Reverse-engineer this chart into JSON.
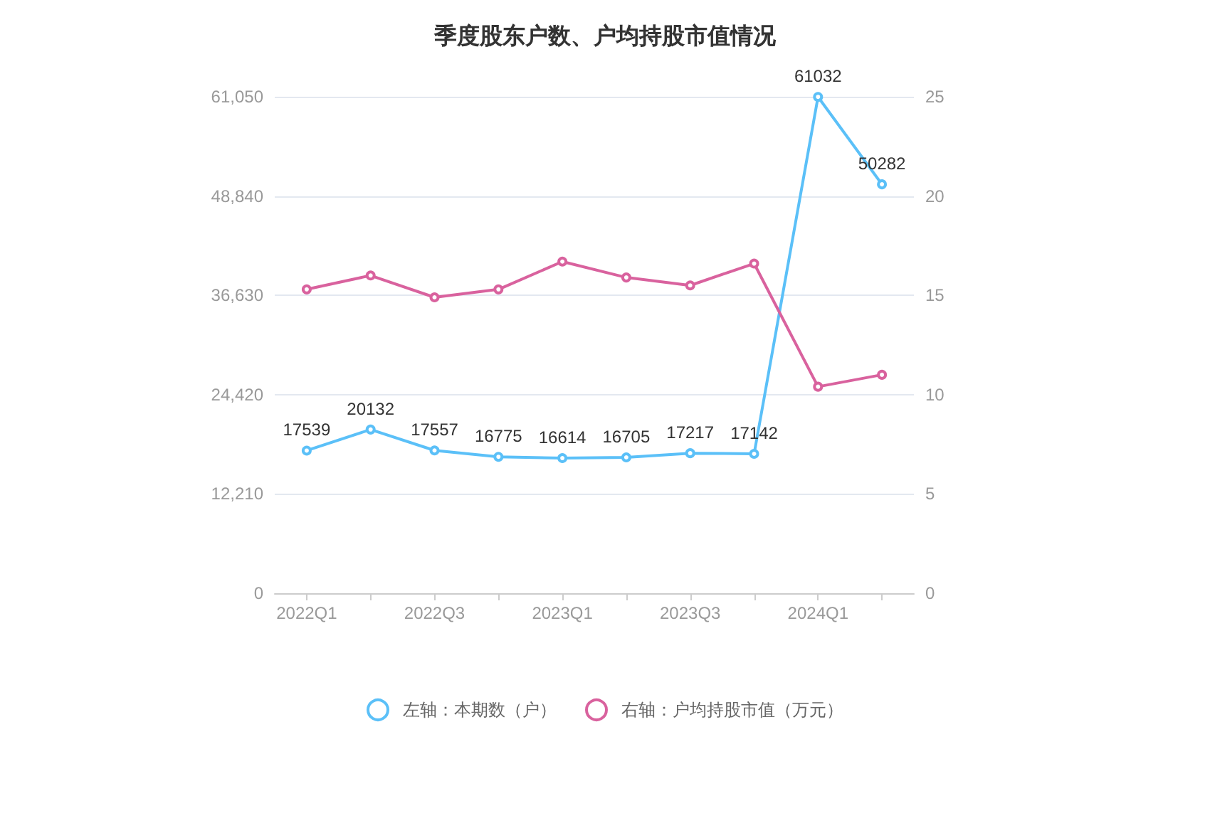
{
  "chart_data": {
    "type": "line",
    "title": "季度股东户数、户均持股市值情况",
    "categories": [
      "2022Q1",
      null,
      "2022Q3",
      null,
      "2023Q1",
      null,
      "2023Q3",
      null,
      "2024Q1",
      null
    ],
    "series": [
      {
        "name": "左轴：本期数（户）",
        "color": "#5bc0f8",
        "values": [
          17539,
          20132,
          17557,
          16775,
          16614,
          16705,
          17217,
          17142,
          61032,
          50282
        ],
        "value_labels": [
          "17539",
          "20132",
          "17557",
          "16775",
          "16614",
          "16705",
          "17217",
          "17142",
          "61032",
          "50282"
        ]
      },
      {
        "name": "右轴：户均持股市值（万元）",
        "color": "#d9629e",
        "axis": "y2",
        "values": [
          15.3,
          16.0,
          14.9,
          15.3,
          16.7,
          15.9,
          15.5,
          16.6,
          10.4,
          11.0
        ]
      }
    ],
    "ylim": [
      0,
      61050
    ],
    "yticks": [
      0,
      {
        "value": 12210,
        "label": "12,210"
      },
      {
        "value": 24420,
        "label": "24,420"
      },
      {
        "value": 36630,
        "label": "36,630"
      },
      {
        "value": 48840,
        "label": "48,840"
      },
      {
        "value": 61050,
        "label": "61,050"
      }
    ],
    "y2lim": [
      0,
      25
    ],
    "y2ticks": [
      0,
      5,
      10,
      15,
      20,
      25
    ],
    "grid": "y",
    "legend": "bottom",
    "marker": "circle",
    "line_style": "solid"
  }
}
